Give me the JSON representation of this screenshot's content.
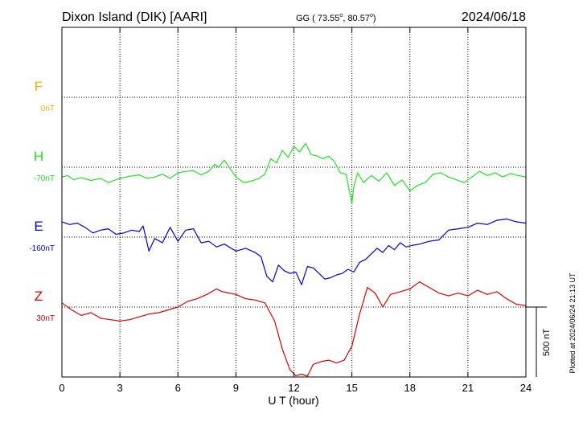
{
  "header": {
    "station": "Dixon Island (DIK)  [AARI]",
    "coords_prefix": "GG ( 73.55",
    "coords_mid": ",  80.57",
    "coords_suffix": ")",
    "degree_mark": "o",
    "date": "2024/06/18"
  },
  "footer": {
    "plotted": "Plotted at 2024/06/24 21:13 UT"
  },
  "colors": {
    "F": "#f2b000",
    "H": "#1fe51f",
    "E": "#0000dd",
    "Z": "#e00000",
    "axis": "#000000"
  },
  "chart_data": {
    "type": "line",
    "title": "Dixon Island (DIK)  [AARI]",
    "xlabel": "U T (hour)",
    "ylabel": "",
    "xlim": [
      0,
      24
    ],
    "xticks": [
      "0",
      "3",
      "6",
      "9",
      "12",
      "15",
      "18",
      "21",
      "24"
    ],
    "grid": true,
    "scale_bar": "500 nT",
    "scale_bar_nT": 500,
    "series": [
      {
        "name": "F",
        "baseline": "0nT",
        "color": "#f2b000",
        "x": [],
        "y": []
      },
      {
        "name": "H",
        "baseline": "-70nT",
        "color": "#1fe51f",
        "x": [
          0,
          0.3,
          0.6,
          1,
          1.5,
          2,
          2.4,
          3,
          3.5,
          4,
          4.4,
          4.8,
          5.2,
          5.6,
          6,
          6.4,
          6.8,
          7.2,
          7.6,
          7.9,
          8.1,
          8.4,
          9,
          9.4,
          9.8,
          10.2,
          10.5,
          10.8,
          11.1,
          11.4,
          11.7,
          12,
          12.3,
          12.6,
          12.9,
          13.2,
          13.5,
          13.8,
          14.1,
          14.4,
          14.7,
          15,
          15.1,
          15.3,
          15.6,
          16,
          16.4,
          16.8,
          17.2,
          17.6,
          18,
          18.4,
          18.8,
          19.2,
          19.6,
          20,
          20.4,
          20.8,
          21.2,
          21.6,
          22,
          22.4,
          22.8,
          23.2,
          23.6,
          24
        ],
        "y": [
          -70,
          -60,
          -90,
          -75,
          -95,
          -80,
          -110,
          -80,
          -65,
          -55,
          -80,
          -70,
          -50,
          -80,
          -40,
          -30,
          -25,
          -55,
          -30,
          20,
          0,
          50,
          -70,
          -110,
          -100,
          -80,
          -50,
          60,
          30,
          120,
          70,
          150,
          110,
          170,
          90,
          80,
          60,
          80,
          40,
          -40,
          -50,
          -260,
          -140,
          -40,
          -110,
          -60,
          -100,
          -40,
          -130,
          -90,
          -170,
          -130,
          -110,
          -50,
          -40,
          -70,
          -90,
          -110,
          -70,
          -30,
          -60,
          -40,
          -70,
          -45,
          -60,
          -70
        ]
      },
      {
        "name": "E",
        "baseline": "-160nT",
        "color": "#0000dd",
        "x": [
          0,
          0.4,
          0.8,
          1.2,
          1.6,
          2,
          2.4,
          2.8,
          3.2,
          3.6,
          4,
          4.2,
          4.5,
          4.8,
          5.2,
          5.6,
          6,
          6.4,
          6.8,
          7.2,
          7.6,
          8,
          8.4,
          9,
          9.5,
          10,
          10.3,
          10.6,
          10.9,
          11.2,
          11.5,
          11.8,
          12.1,
          12.4,
          12.7,
          13,
          13.3,
          13.6,
          13.9,
          14.2,
          14.5,
          14.8,
          15.1,
          15.4,
          15.7,
          16,
          16.3,
          16.6,
          16.9,
          17.2,
          17.5,
          17.8,
          18.1,
          18.5,
          19,
          19.5,
          20,
          20.5,
          21,
          21.5,
          22,
          22.5,
          23,
          23.5,
          24
        ],
        "y": [
          110,
          90,
          100,
          70,
          30,
          50,
          60,
          20,
          30,
          50,
          40,
          80,
          -100,
          -10,
          -40,
          70,
          -30,
          50,
          60,
          -40,
          -30,
          -70,
          -50,
          -100,
          -80,
          -110,
          -140,
          -280,
          -320,
          -200,
          -240,
          -260,
          -250,
          -340,
          -210,
          -220,
          -260,
          -300,
          -290,
          -270,
          -260,
          -230,
          -250,
          -180,
          -160,
          -120,
          -80,
          -110,
          -60,
          -90,
          -40,
          -70,
          -60,
          -50,
          -30,
          -20,
          50,
          60,
          70,
          100,
          90,
          120,
          130,
          110,
          100
        ]
      },
      {
        "name": "Z",
        "baseline": "30nT",
        "color": "#e00000",
        "x": [
          0,
          0.5,
          1,
          1.5,
          2,
          2.5,
          3,
          3.5,
          4,
          4.5,
          5,
          5.5,
          6,
          6.5,
          7,
          7.5,
          8,
          8.3,
          9,
          9.5,
          10,
          10.5,
          11,
          11.4,
          11.8,
          12.1,
          12.4,
          12.7,
          13,
          13.4,
          13.8,
          14.2,
          14.6,
          15,
          15.4,
          15.8,
          16.2,
          16.6,
          17,
          17.5,
          18,
          18.5,
          19,
          19.5,
          20,
          20.5,
          21,
          21.5,
          22,
          22.5,
          23,
          23.5,
          24
        ],
        "y": [
          30,
          -20,
          -60,
          -40,
          -80,
          -90,
          -100,
          -90,
          -70,
          -50,
          -40,
          -20,
          0,
          40,
          60,
          90,
          130,
          110,
          90,
          60,
          50,
          30,
          -100,
          -300,
          -450,
          -490,
          -480,
          -500,
          -410,
          -390,
          -380,
          -400,
          -380,
          -280,
          -50,
          140,
          100,
          0,
          90,
          110,
          130,
          180,
          140,
          100,
          80,
          100,
          80,
          120,
          90,
          110,
          60,
          20,
          10
        ]
      }
    ]
  }
}
